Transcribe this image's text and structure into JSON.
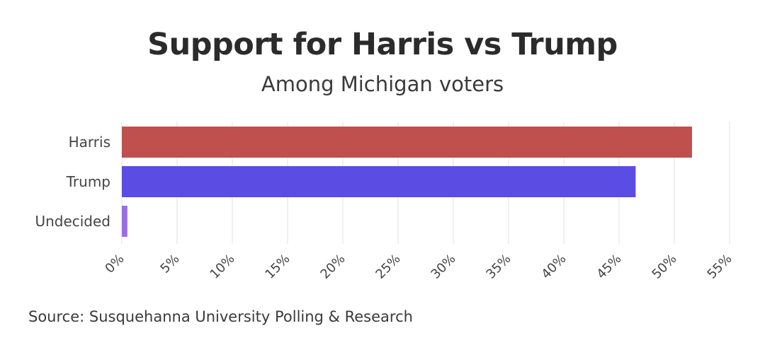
{
  "title": "Support for Harris vs Trump",
  "subtitle": "Among Michigan voters",
  "source": "Source: Susquehanna University Polling & Research",
  "chart_data": {
    "type": "bar",
    "orientation": "horizontal",
    "categories": [
      "Harris",
      "Trump",
      "Undecided"
    ],
    "values": [
      51.6,
      46.5,
      0.5
    ],
    "colors": [
      "#c0504d",
      "#5b4de3",
      "#9b6de3"
    ],
    "xlim": [
      0,
      55
    ],
    "xticks": [
      0,
      5,
      10,
      15,
      20,
      25,
      30,
      35,
      40,
      45,
      50,
      55
    ],
    "xtick_labels": [
      "0%",
      "5%",
      "10%",
      "15%",
      "20%",
      "25%",
      "30%",
      "35%",
      "40%",
      "45%",
      "50%",
      "55%"
    ],
    "grid": true,
    "legend": "none"
  }
}
